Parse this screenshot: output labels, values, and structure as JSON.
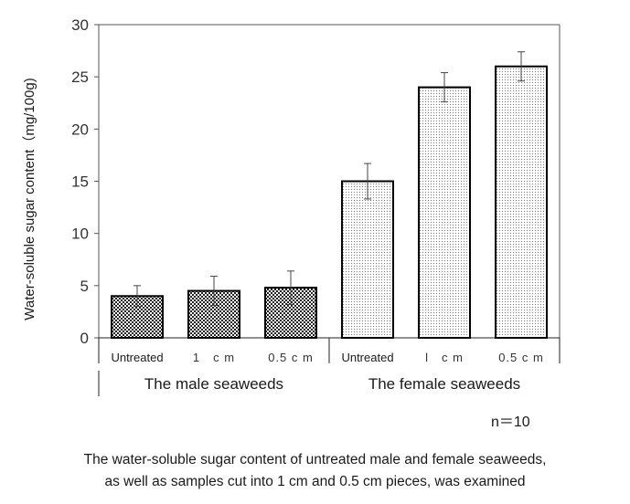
{
  "chart_data": {
    "type": "bar",
    "categories": [
      "Untreated",
      "1　c m",
      "0.5 c m",
      "Untreated",
      "l　c m",
      "0.5 c m"
    ],
    "groups": [
      {
        "label": "The male seaweeds",
        "categories": [
          0,
          1,
          2
        ]
      },
      {
        "label": "The female seaweeds",
        "categories": [
          3,
          4,
          5
        ]
      }
    ],
    "values": [
      4.0,
      4.5,
      4.8,
      15.0,
      24.0,
      26.0
    ],
    "errors": [
      1.0,
      1.4,
      1.6,
      1.7,
      1.4,
      1.4
    ],
    "pattern": [
      "dense",
      "dense",
      "dense",
      "light",
      "light",
      "light"
    ],
    "ylabel": "Water-soluble sugar content（mg/100g)",
    "xlabel": "",
    "ylim": [
      0,
      30
    ],
    "yticks": [
      0,
      5,
      10,
      15,
      20,
      25,
      30
    ],
    "grid": false
  },
  "note": "n＝10",
  "caption": [
    "The water-soluble sugar content of untreated male and female seaweeds,",
    "as well as samples cut into 1 cm and 0.5 cm pieces, was examined"
  ]
}
